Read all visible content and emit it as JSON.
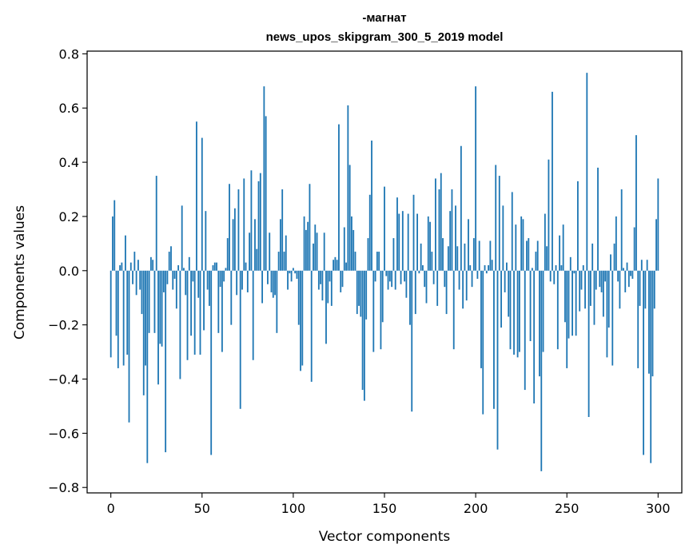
{
  "chart_data": {
    "type": "bar",
    "title_line1": "-магнат",
    "title_line2": "news_upos_skipgram_300_5_2019 model",
    "xlabel": "Vector components",
    "ylabel": "Components values",
    "xlim": [
      -13,
      313
    ],
    "ylim": [
      -0.82,
      0.81
    ],
    "x_ticks": [
      0,
      50,
      100,
      150,
      200,
      250,
      300
    ],
    "x_tick_labels": [
      "0",
      "50",
      "100",
      "150",
      "200",
      "250",
      "300"
    ],
    "y_ticks": [
      0.8,
      0.6,
      0.4,
      0.2,
      0.0,
      -0.2,
      -0.4,
      -0.6,
      -0.8
    ],
    "y_tick_labels": [
      "0.8",
      "0.6",
      "0.4",
      "0.2",
      "0.0",
      "−0.2",
      "−0.4",
      "−0.6",
      "−0.8"
    ],
    "bar_color": "#1f77b4",
    "values": [
      -0.32,
      0.2,
      0.26,
      -0.24,
      -0.36,
      0.02,
      0.03,
      -0.35,
      0.13,
      -0.31,
      -0.56,
      0.03,
      -0.05,
      0.07,
      -0.09,
      0.04,
      -0.07,
      -0.16,
      -0.46,
      -0.35,
      -0.71,
      -0.23,
      0.05,
      0.04,
      -0.23,
      0.35,
      -0.42,
      -0.27,
      -0.28,
      -0.08,
      -0.67,
      -0.05,
      0.07,
      0.09,
      -0.07,
      -0.03,
      -0.14,
      0.02,
      -0.4,
      0.24,
      0.01,
      -0.09,
      -0.33,
      0.05,
      -0.24,
      -0.04,
      -0.31,
      0.55,
      -0.1,
      -0.31,
      0.49,
      -0.22,
      0.22,
      -0.07,
      -0.13,
      -0.68,
      0.02,
      0.03,
      0.03,
      -0.23,
      -0.06,
      -0.3,
      -0.04,
      0.01,
      0.12,
      0.32,
      -0.2,
      0.19,
      0.23,
      -0.09,
      0.3,
      -0.51,
      -0.07,
      0.34,
      0.03,
      -0.08,
      0.14,
      0.37,
      -0.33,
      0.19,
      0.08,
      0.33,
      0.36,
      -0.12,
      0.68,
      0.57,
      -0.05,
      0.14,
      -0.08,
      -0.1,
      -0.09,
      -0.23,
      0.07,
      0.19,
      0.3,
      0.07,
      0.13,
      -0.07,
      -0.01,
      -0.04,
      0.01,
      -0.01,
      -0.03,
      -0.2,
      -0.37,
      -0.35,
      0.2,
      0.15,
      0.18,
      0.32,
      -0.41,
      0.1,
      0.17,
      0.14,
      -0.07,
      -0.05,
      -0.11,
      0.14,
      -0.27,
      -0.12,
      -0.04,
      -0.13,
      0.04,
      0.05,
      0.04,
      0.54,
      -0.08,
      -0.06,
      0.16,
      0.03,
      0.61,
      0.39,
      0.2,
      0.15,
      0.07,
      -0.16,
      -0.13,
      -0.17,
      -0.44,
      -0.48,
      -0.18,
      0.12,
      0.28,
      0.48,
      -0.3,
      -0.04,
      0.07,
      0.07,
      -0.29,
      -0.19,
      0.31,
      -0.02,
      -0.07,
      -0.04,
      -0.06,
      0.12,
      -0.07,
      0.27,
      0.21,
      -0.05,
      0.22,
      -0.04,
      -0.1,
      0.21,
      -0.2,
      -0.52,
      0.28,
      -0.16,
      0.21,
      -0.01,
      0.1,
      0.02,
      -0.06,
      -0.12,
      0.2,
      0.18,
      0.07,
      -0.05,
      0.34,
      -0.13,
      0.3,
      0.36,
      0.12,
      -0.06,
      -0.16,
      0.09,
      0.22,
      0.3,
      -0.29,
      0.24,
      0.09,
      -0.07,
      0.46,
      -0.14,
      0.1,
      -0.11,
      0.19,
      0.02,
      -0.06,
      0.12,
      0.68,
      -0.03,
      0.11,
      -0.36,
      -0.53,
      0.02,
      -0.01,
      0.02,
      0.11,
      0.04,
      -0.51,
      0.39,
      -0.66,
      0.35,
      -0.21,
      0.24,
      -0.08,
      0.03,
      -0.17,
      -0.29,
      0.29,
      -0.31,
      0.17,
      -0.32,
      -0.3,
      0.2,
      0.19,
      -0.44,
      0.11,
      0.12,
      -0.26,
      0.01,
      -0.49,
      0.07,
      0.11,
      -0.39,
      -0.74,
      -0.3,
      0.21,
      0.09,
      0.41,
      -0.04,
      0.66,
      -0.05,
      0.02,
      -0.29,
      0.13,
      0.02,
      0.17,
      -0.19,
      -0.36,
      -0.25,
      0.05,
      -0.24,
      -0.01,
      -0.24,
      0.33,
      -0.15,
      -0.07,
      0.02,
      -0.14,
      0.73,
      -0.54,
      -0.13,
      0.1,
      -0.2,
      -0.07,
      0.38,
      -0.06,
      -0.08,
      -0.17,
      -0.04,
      -0.32,
      -0.21,
      0.06,
      -0.35,
      0.1,
      0.2,
      -0.04,
      -0.14,
      0.3,
      0.01,
      -0.08,
      0.03,
      -0.06,
      -0.02,
      -0.03,
      0.16,
      0.5,
      -0.36,
      -0.13,
      0.04,
      -0.68,
      -0.14,
      0.04,
      -0.38,
      -0.71,
      -0.39,
      -0.14,
      0.19,
      0.34
    ]
  }
}
